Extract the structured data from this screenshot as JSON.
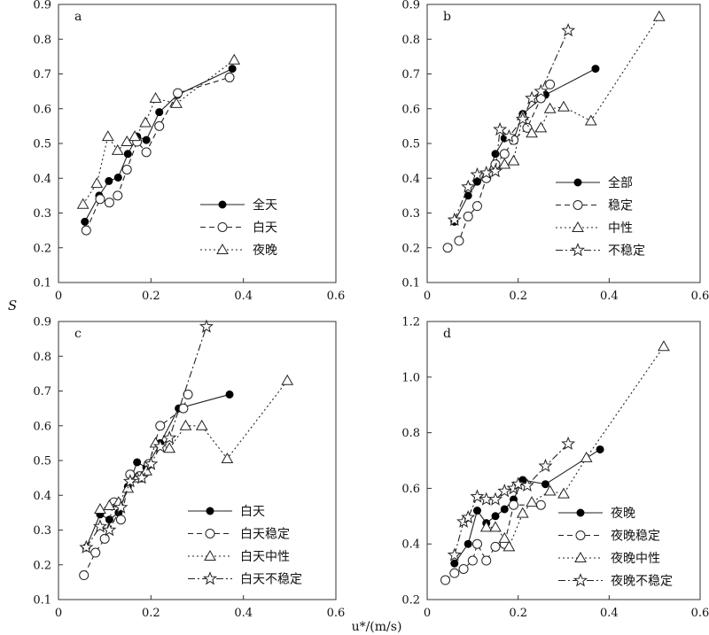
{
  "figure": {
    "ylabel": "S",
    "xlabel": "u*/(m/s)"
  },
  "chart_data": [
    {
      "panel": "a",
      "type": "line",
      "xlim": [
        0,
        0.6
      ],
      "ylim": [
        0.1,
        0.9
      ],
      "xticks": [
        "0",
        "0.2",
        "0.4",
        "0.6"
      ],
      "yticks": [
        "0.1",
        "0.2",
        "0.3",
        "0.4",
        "0.5",
        "0.6",
        "0.7",
        "0.8",
        "0.9"
      ],
      "legend_position": "bottom-right",
      "series": [
        {
          "name": "全天",
          "marker": "filled-circle",
          "line": "solid",
          "x": [
            0.057,
            0.088,
            0.109,
            0.129,
            0.15,
            0.17,
            0.19,
            0.218,
            0.258,
            0.376
          ],
          "y": [
            0.275,
            0.35,
            0.392,
            0.402,
            0.47,
            0.52,
            0.51,
            0.59,
            0.64,
            0.715
          ]
        },
        {
          "name": "白天",
          "marker": "open-circle",
          "line": "dashed",
          "x": [
            0.06,
            0.09,
            0.11,
            0.128,
            0.148,
            0.17,
            0.19,
            0.218,
            0.258,
            0.37
          ],
          "y": [
            0.25,
            0.34,
            0.33,
            0.35,
            0.425,
            0.505,
            0.475,
            0.55,
            0.645,
            0.69
          ]
        },
        {
          "name": "夜晚",
          "marker": "open-triangle",
          "line": "dotted",
          "x": [
            0.053,
            0.083,
            0.107,
            0.128,
            0.148,
            0.165,
            0.188,
            0.21,
            0.255,
            0.38
          ],
          "y": [
            0.325,
            0.385,
            0.52,
            0.48,
            0.505,
            0.52,
            0.56,
            0.63,
            0.615,
            0.74
          ]
        }
      ]
    },
    {
      "panel": "b",
      "type": "line",
      "xlim": [
        0,
        0.6
      ],
      "ylim": [
        0.1,
        0.9
      ],
      "xticks": [
        "0",
        "0.2",
        "0.4",
        "0.6"
      ],
      "yticks": [
        "0.1",
        "0.2",
        "0.3",
        "0.4",
        "0.5",
        "0.6",
        "0.7",
        "0.8",
        "0.9"
      ],
      "legend_position": "bottom-right",
      "series": [
        {
          "name": "全部",
          "marker": "filled-circle",
          "line": "solid",
          "x": [
            0.06,
            0.09,
            0.11,
            0.13,
            0.15,
            0.17,
            0.19,
            0.21,
            0.26,
            0.37
          ],
          "y": [
            0.275,
            0.35,
            0.39,
            0.4,
            0.47,
            0.515,
            0.51,
            0.585,
            0.64,
            0.715
          ]
        },
        {
          "name": "稳定",
          "marker": "open-circle",
          "line": "dashed",
          "x": [
            0.045,
            0.07,
            0.09,
            0.11,
            0.13,
            0.15,
            0.17,
            0.19,
            0.22,
            0.25,
            0.27
          ],
          "y": [
            0.2,
            0.22,
            0.29,
            0.32,
            0.4,
            0.44,
            0.47,
            0.51,
            0.545,
            0.63,
            0.67
          ]
        },
        {
          "name": "中性",
          "marker": "open-triangle",
          "line": "dotted",
          "x": [
            0.17,
            0.19,
            0.21,
            0.23,
            0.25,
            0.27,
            0.3,
            0.36,
            0.51
          ],
          "y": [
            0.44,
            0.45,
            0.58,
            0.53,
            0.545,
            0.6,
            0.605,
            0.565,
            0.865
          ]
        },
        {
          "name": "不稳定",
          "marker": "open-star",
          "line": "dashdot",
          "x": [
            0.06,
            0.09,
            0.11,
            0.13,
            0.15,
            0.16,
            0.18,
            0.21,
            0.23,
            0.25,
            0.31
          ],
          "y": [
            0.28,
            0.375,
            0.41,
            0.415,
            0.42,
            0.54,
            0.52,
            0.57,
            0.63,
            0.65,
            0.825
          ]
        }
      ]
    },
    {
      "panel": "c",
      "type": "line",
      "xlim": [
        0,
        0.6
      ],
      "ylim": [
        0.1,
        0.9
      ],
      "xticks": [
        "0",
        "0.2",
        "0.4",
        "0.6"
      ],
      "yticks": [
        "0.1",
        "0.2",
        "0.3",
        "0.4",
        "0.5",
        "0.6",
        "0.7",
        "0.8",
        "0.9"
      ],
      "legend_position": "bottom-right",
      "series": [
        {
          "name": "白天",
          "marker": "filled-circle",
          "line": "solid",
          "x": [
            0.06,
            0.09,
            0.11,
            0.13,
            0.15,
            0.17,
            0.19,
            0.22,
            0.26,
            0.37
          ],
          "y": [
            0.25,
            0.345,
            0.33,
            0.35,
            0.425,
            0.495,
            0.48,
            0.55,
            0.65,
            0.69
          ]
        },
        {
          "name": "白天稳定",
          "marker": "open-circle",
          "line": "dashed",
          "x": [
            0.055,
            0.08,
            0.1,
            0.12,
            0.135,
            0.155,
            0.175,
            0.195,
            0.22,
            0.27,
            0.28
          ],
          "y": [
            0.17,
            0.235,
            0.275,
            0.38,
            0.33,
            0.46,
            0.455,
            0.49,
            0.6,
            0.65,
            0.69
          ]
        },
        {
          "name": "白天中性",
          "marker": "open-triangle",
          "line": "dotted",
          "x": [
            0.09,
            0.11,
            0.13,
            0.15,
            0.17,
            0.19,
            0.21,
            0.24,
            0.275,
            0.31,
            0.365,
            0.495
          ],
          "y": [
            0.36,
            0.37,
            0.38,
            0.42,
            0.45,
            0.47,
            0.55,
            0.535,
            0.6,
            0.6,
            0.505,
            0.73
          ]
        },
        {
          "name": "白天不稳定",
          "marker": "open-star",
          "line": "dashdot",
          "x": [
            0.06,
            0.09,
            0.11,
            0.135,
            0.155,
            0.18,
            0.2,
            0.22,
            0.24,
            0.32
          ],
          "y": [
            0.25,
            0.31,
            0.3,
            0.365,
            0.44,
            0.45,
            0.49,
            0.54,
            0.565,
            0.885
          ]
        }
      ]
    },
    {
      "panel": "d",
      "type": "line",
      "xlim": [
        0,
        0.6
      ],
      "ylim": [
        0.2,
        1.2
      ],
      "xticks": [
        "0",
        "0.2",
        "0.4",
        "0.6"
      ],
      "yticks": [
        "0.2",
        "0.4",
        "0.6",
        "0.8",
        "1.0",
        "1.2"
      ],
      "legend_position": "bottom-right",
      "series": [
        {
          "name": "夜晚",
          "marker": "filled-circle",
          "line": "solid",
          "x": [
            0.06,
            0.09,
            0.11,
            0.13,
            0.15,
            0.17,
            0.19,
            0.21,
            0.26,
            0.38
          ],
          "y": [
            0.33,
            0.4,
            0.52,
            0.475,
            0.5,
            0.525,
            0.56,
            0.63,
            0.615,
            0.74
          ]
        },
        {
          "name": "夜晚稳定",
          "marker": "open-circle",
          "line": "dashed",
          "x": [
            0.04,
            0.06,
            0.08,
            0.1,
            0.11,
            0.13,
            0.15,
            0.17,
            0.19,
            0.25
          ],
          "y": [
            0.27,
            0.295,
            0.31,
            0.34,
            0.4,
            0.34,
            0.39,
            0.4,
            0.54,
            0.54
          ]
        },
        {
          "name": "夜晚中性",
          "marker": "open-triangle",
          "line": "dotted",
          "x": [
            0.13,
            0.15,
            0.17,
            0.18,
            0.21,
            0.23,
            0.27,
            0.3,
            0.35,
            0.52
          ],
          "y": [
            0.46,
            0.46,
            0.42,
            0.39,
            0.51,
            0.55,
            0.59,
            0.58,
            0.71,
            1.11
          ]
        },
        {
          "name": "夜晚不稳定",
          "marker": "open-star",
          "line": "dashdot",
          "x": [
            0.06,
            0.08,
            0.09,
            0.11,
            0.13,
            0.15,
            0.17,
            0.19,
            0.2,
            0.22,
            0.26,
            0.31
          ],
          "y": [
            0.36,
            0.48,
            0.495,
            0.57,
            0.56,
            0.56,
            0.59,
            0.6,
            0.615,
            0.61,
            0.68,
            0.76
          ]
        }
      ]
    }
  ]
}
